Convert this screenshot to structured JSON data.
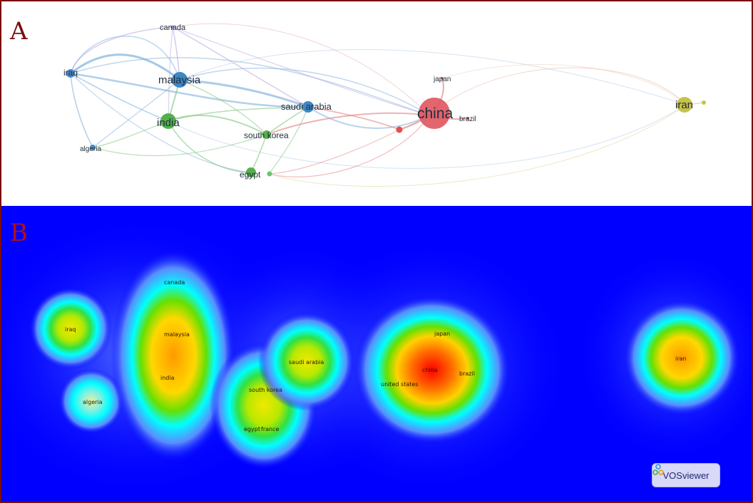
{
  "figure": {
    "panel_a": {
      "letter": "A",
      "nodes": [
        {
          "label": "canada",
          "color": "#9b8fd0",
          "size": "small"
        },
        {
          "label": "iraq",
          "color": "#4a8cc9",
          "size": "small"
        },
        {
          "label": "malaysia",
          "color": "#3f86c4",
          "size": "large"
        },
        {
          "label": "india",
          "color": "#55b04c",
          "size": "large"
        },
        {
          "label": "algeria",
          "color": "#4a8cc9",
          "size": "small"
        },
        {
          "label": "saudi arabia",
          "color": "#3f86c4",
          "size": "medium"
        },
        {
          "label": "south korea",
          "color": "#55b04c",
          "size": "medium"
        },
        {
          "label": "egypt",
          "color": "#55b04c",
          "size": "medium"
        },
        {
          "label": "japan",
          "color": "#d85a5a",
          "size": "small"
        },
        {
          "label": "china",
          "color": "#e0545e",
          "size": "xlarge"
        },
        {
          "label": "brazil",
          "color": "#d85a5a",
          "size": "small"
        },
        {
          "label": "iran",
          "color": "#c9c24a",
          "size": "large"
        }
      ],
      "link_colors": {
        "blue": "#7fb0dc",
        "green": "#7cc47a",
        "red": "#e48a8a",
        "purple": "#b6a6e0",
        "yellow": "#d9d48a"
      }
    },
    "panel_b": {
      "letter": "B",
      "background": "#0000ff",
      "labels": [
        "canada",
        "iraq",
        "malaysia",
        "india",
        "algeria",
        "saudi arabia",
        "south korea",
        "egypt",
        "france",
        "japan",
        "china",
        "united states",
        "brazil",
        "iran"
      ],
      "badge_text": "VOSviewer"
    }
  }
}
